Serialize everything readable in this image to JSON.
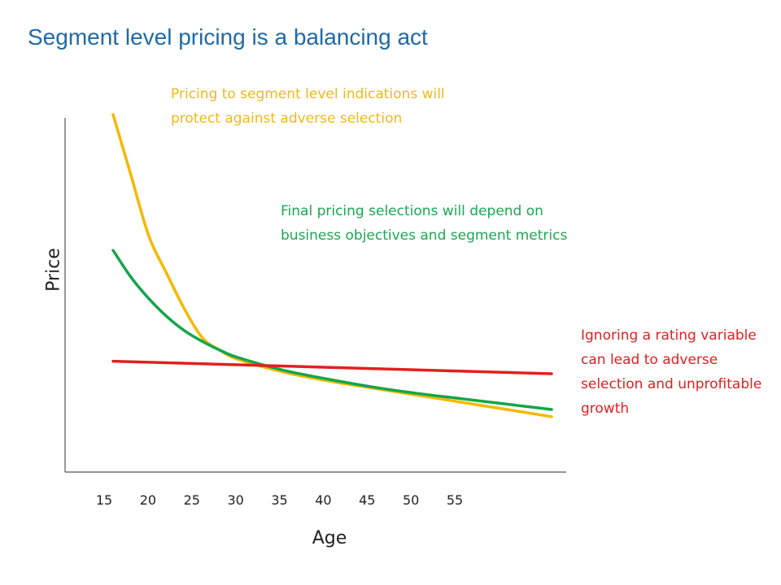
{
  "chart_data": {
    "type": "line",
    "title": "Segment level pricing is a balancing act",
    "xlabel": "Age",
    "ylabel": "Price",
    "x_ticks": [
      "15",
      "20",
      "25",
      "30",
      "35",
      "40",
      "45",
      "50",
      "55"
    ],
    "grid": false,
    "legend": "none",
    "series": [
      {
        "color": "#f5b800",
        "points": [
          [
            16,
            10.0
          ],
          [
            18,
            8.3
          ],
          [
            20,
            6.6
          ],
          [
            22,
            5.55
          ],
          [
            24,
            4.55
          ],
          [
            26,
            3.75
          ],
          [
            28,
            3.4
          ],
          [
            30,
            3.15
          ],
          [
            35,
            2.8
          ],
          [
            40,
            2.55
          ],
          [
            45,
            2.35
          ],
          [
            50,
            2.15
          ],
          [
            55,
            1.95
          ],
          [
            60,
            1.75
          ],
          [
            65,
            1.55
          ]
        ]
      },
      {
        "color": "#12a64a",
        "points": [
          [
            16,
            6.2
          ],
          [
            18,
            5.45
          ],
          [
            20,
            4.85
          ],
          [
            22,
            4.35
          ],
          [
            24,
            3.95
          ],
          [
            26,
            3.65
          ],
          [
            28,
            3.4
          ],
          [
            30,
            3.2
          ],
          [
            35,
            2.85
          ],
          [
            40,
            2.6
          ],
          [
            45,
            2.38
          ],
          [
            50,
            2.2
          ],
          [
            55,
            2.05
          ],
          [
            60,
            1.9
          ],
          [
            65,
            1.75
          ]
        ]
      },
      {
        "color": "#e41e1e",
        "points": [
          [
            16,
            3.1
          ],
          [
            65,
            2.75
          ]
        ]
      }
    ],
    "annotations": [
      {
        "text": "Pricing to segment level indications will protect against adverse selection",
        "color": "#f0b81a"
      },
      {
        "text": "Final pricing selections will depend on business objectives and segment metrics",
        "color": "#1aa850"
      },
      {
        "text": "Ignoring a rating variable can lead to adverse selection and unprofitable growth",
        "color": "#e01f1f"
      }
    ]
  }
}
